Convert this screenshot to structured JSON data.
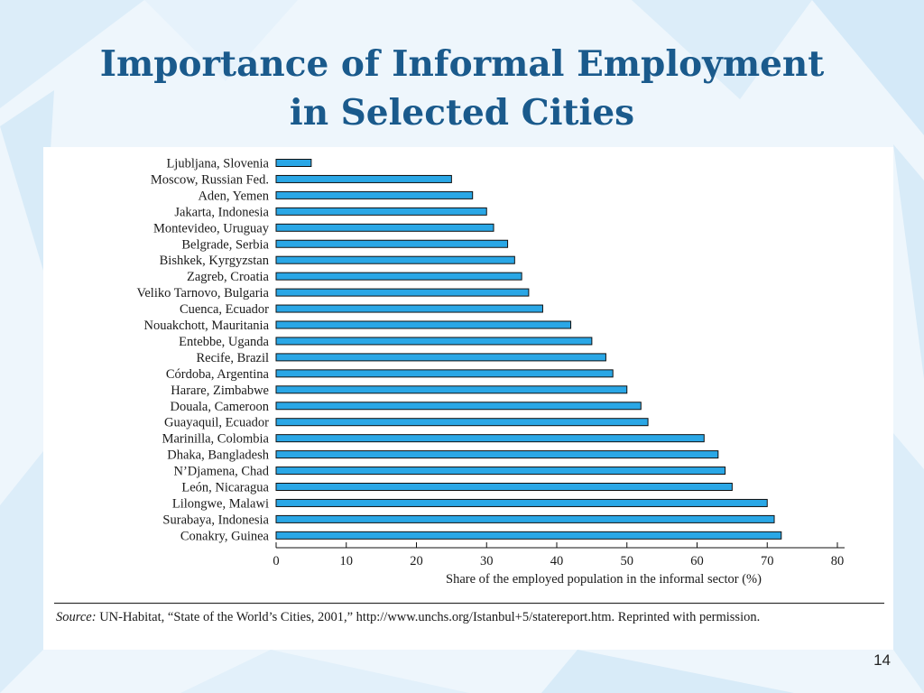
{
  "slide": {
    "title_line1": "Importance of Informal Employment",
    "title_line2": "in Selected Cities",
    "page_number": "14"
  },
  "source": {
    "label": "Source:",
    "text": "UN-Habitat, “State of the World’s Cities, 2001,” http://www.unchs.org/Istanbul+5/statereport.htm. Reprinted with permission."
  },
  "colors": {
    "bar_fill": "#2aa7e6",
    "bar_stroke": "#101010",
    "title": "#1a5a8c"
  },
  "chart_data": {
    "type": "bar",
    "orientation": "horizontal",
    "categories": [
      "Ljubljana, Slovenia",
      "Moscow, Russian Fed.",
      "Aden, Yemen",
      "Jakarta, Indonesia",
      "Montevideo, Uruguay",
      "Belgrade, Serbia",
      "Bishkek, Kyrgyzstan",
      "Zagreb, Croatia",
      "Veliko Tarnovo, Bulgaria",
      "Cuenca, Ecuador",
      "Nouakchott, Mauritania",
      "Entebbe, Uganda",
      "Recife, Brazil",
      "Córdoba, Argentina",
      "Harare, Zimbabwe",
      "Douala, Cameroon",
      "Guayaquil, Ecuador",
      "Marinilla, Colombia",
      "Dhaka, Bangladesh",
      "N’Djamena, Chad",
      "León, Nicaragua",
      "Lilongwe, Malawi",
      "Surabaya, Indonesia",
      "Conakry, Guinea"
    ],
    "values": [
      5,
      25,
      28,
      30,
      31,
      33,
      34,
      35,
      36,
      38,
      42,
      45,
      47,
      48,
      50,
      52,
      53,
      61,
      63,
      64,
      65,
      70,
      71,
      72
    ],
    "xlabel": "Share of the employed population in the informal sector (%)",
    "xlim": [
      0,
      80
    ],
    "xticks": [
      0,
      10,
      20,
      30,
      40,
      50,
      60,
      70,
      80
    ],
    "grid": false,
    "legend": "none"
  }
}
